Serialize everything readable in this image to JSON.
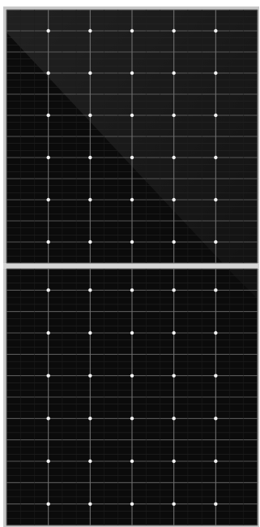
{
  "image": {
    "subject": "solar-panel",
    "colors": {
      "background": "#ffffff",
      "frame": "#c8c8c8",
      "cell": "#0b0b0b",
      "cell_reflection": "#3a3a3a",
      "grid_line": "#6f6f6f",
      "busbar_dot": "#f2f2f2",
      "center_divider": "#d6d6d6"
    },
    "layout_counts": {
      "columns": 6,
      "rows_per_half": 12,
      "halves": 2
    }
  }
}
